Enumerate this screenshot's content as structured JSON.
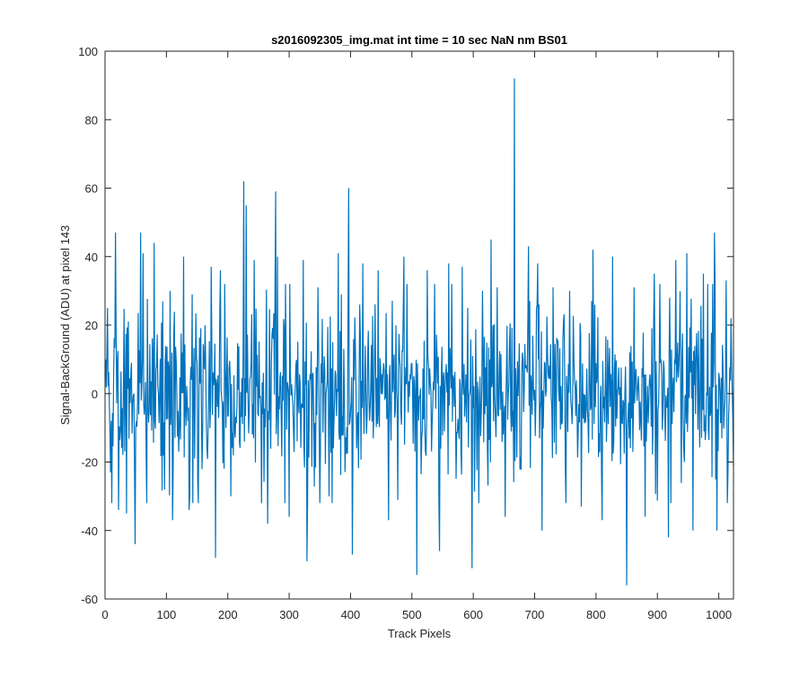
{
  "chart_data": {
    "type": "line",
    "title": "s2016092305_img.mat int time = 10 sec  NaN nm BS01",
    "xlabel": "Track Pixels",
    "ylabel": "Signal-BackGround (ADU) at pixel 143",
    "xlim": [
      0,
      1024
    ],
    "ylim": [
      -60,
      100
    ],
    "xticks": [
      0,
      100,
      200,
      300,
      400,
      500,
      600,
      700,
      800,
      900,
      1000
    ],
    "yticks": [
      -60,
      -40,
      -20,
      0,
      20,
      40,
      60,
      80,
      100
    ],
    "grid": false,
    "legend": "none",
    "series_color": "#0072BD",
    "axes_color": "#262626",
    "series": [
      {
        "x_start": 1,
        "x_step": 1,
        "noise_std": 13,
        "n_points": 1024,
        "peaks": [
          {
            "x": 4,
            "y": 25
          },
          {
            "x": 9,
            "y": -23
          },
          {
            "x": 17,
            "y": 47
          },
          {
            "x": 22,
            "y": -34
          },
          {
            "x": 35,
            "y": -35
          },
          {
            "x": 49,
            "y": -44
          },
          {
            "x": 58,
            "y": 47
          },
          {
            "x": 62,
            "y": 41
          },
          {
            "x": 68,
            "y": -32
          },
          {
            "x": 80,
            "y": 44
          },
          {
            "x": 97,
            "y": -28
          },
          {
            "x": 106,
            "y": 30
          },
          {
            "x": 110,
            "y": -37
          },
          {
            "x": 128,
            "y": 40
          },
          {
            "x": 137,
            "y": -34
          },
          {
            "x": 152,
            "y": -32
          },
          {
            "x": 173,
            "y": 37
          },
          {
            "x": 180,
            "y": -48
          },
          {
            "x": 188,
            "y": 36
          },
          {
            "x": 205,
            "y": -30
          },
          {
            "x": 226,
            "y": 62
          },
          {
            "x": 230,
            "y": 55
          },
          {
            "x": 243,
            "y": 39
          },
          {
            "x": 255,
            "y": -32
          },
          {
            "x": 265,
            "y": -38
          },
          {
            "x": 278,
            "y": 59
          },
          {
            "x": 281,
            "y": 40
          },
          {
            "x": 300,
            "y": -36
          },
          {
            "x": 323,
            "y": 39
          },
          {
            "x": 329,
            "y": -49
          },
          {
            "x": 347,
            "y": 31
          },
          {
            "x": 365,
            "y": -30
          },
          {
            "x": 380,
            "y": 41
          },
          {
            "x": 397,
            "y": 60
          },
          {
            "x": 403,
            "y": -47
          },
          {
            "x": 420,
            "y": 38
          },
          {
            "x": 445,
            "y": 36
          },
          {
            "x": 462,
            "y": -37
          },
          {
            "x": 487,
            "y": 40
          },
          {
            "x": 508,
            "y": -53
          },
          {
            "x": 525,
            "y": 36
          },
          {
            "x": 545,
            "y": -46
          },
          {
            "x": 560,
            "y": 38
          },
          {
            "x": 582,
            "y": 37
          },
          {
            "x": 598,
            "y": -51
          },
          {
            "x": 615,
            "y": 30
          },
          {
            "x": 629,
            "y": 45
          },
          {
            "x": 652,
            "y": -36
          },
          {
            "x": 667,
            "y": 92
          },
          {
            "x": 690,
            "y": 43
          },
          {
            "x": 705,
            "y": 38
          },
          {
            "x": 712,
            "y": -40
          },
          {
            "x": 730,
            "y": 31
          },
          {
            "x": 757,
            "y": 30
          },
          {
            "x": 776,
            "y": -33
          },
          {
            "x": 795,
            "y": 42
          },
          {
            "x": 810,
            "y": -37
          },
          {
            "x": 827,
            "y": 40
          },
          {
            "x": 850,
            "y": -56
          },
          {
            "x": 862,
            "y": 31
          },
          {
            "x": 880,
            "y": -36
          },
          {
            "x": 895,
            "y": 35
          },
          {
            "x": 918,
            "y": -42
          },
          {
            "x": 930,
            "y": 39
          },
          {
            "x": 948,
            "y": 41
          },
          {
            "x": 958,
            "y": -40
          },
          {
            "x": 975,
            "y": 35
          },
          {
            "x": 993,
            "y": 47
          },
          {
            "x": 997,
            "y": -40
          },
          {
            "x": 1012,
            "y": 33
          },
          {
            "x": 1020,
            "y": 22
          }
        ]
      }
    ]
  }
}
